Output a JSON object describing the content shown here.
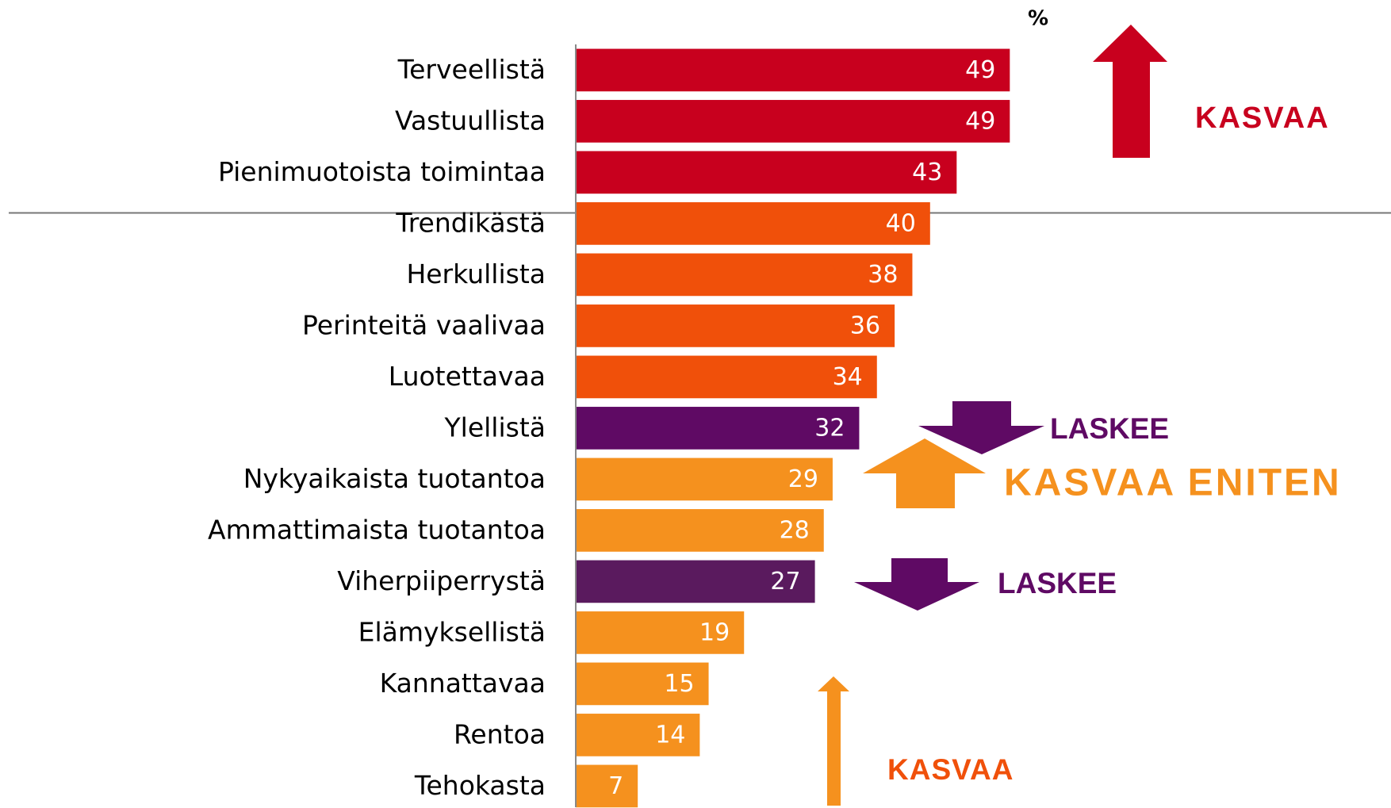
{
  "chart_data": {
    "type": "bar",
    "orientation": "horizontal",
    "unit_label": "%",
    "categories": [
      "Terveellistä",
      "Vastuullista",
      "Pienimuotoista toimintaa",
      "Trendikästä",
      "Herkullista",
      "Perinteitä vaalivaa",
      "Luotettavaa",
      "Ylellistä",
      "Nykyaikaista tuotantoa",
      "Ammattimaista tuotantoa",
      "Viherpiiperrystä",
      "Elämyksellistä",
      "Kannattavaa",
      "Rentoa",
      "Tehokasta"
    ],
    "values": [
      49,
      49,
      43,
      40,
      38,
      36,
      34,
      32,
      29,
      28,
      27,
      19,
      15,
      14,
      7
    ],
    "colors": [
      "#c8001e",
      "#c8001e",
      "#c8001e",
      "#f0500a",
      "#f0500a",
      "#f0500a",
      "#f0500a",
      "#5f0a64",
      "#f5911e",
      "#f5911e",
      "#5a1a5e",
      "#f5911e",
      "#f5911e",
      "#f5911e",
      "#f5911e"
    ],
    "annotations": [
      {
        "text": "KASVAA",
        "color": "#c8001e"
      },
      {
        "text": "LASKEE",
        "color": "#5f0a64"
      },
      {
        "text": "KASVAA ENITEN",
        "color": "#f5911e"
      },
      {
        "text": "LASKEE",
        "color": "#5f0a64"
      },
      {
        "text": "KASVAA",
        "color": "#f0500a"
      }
    ]
  }
}
